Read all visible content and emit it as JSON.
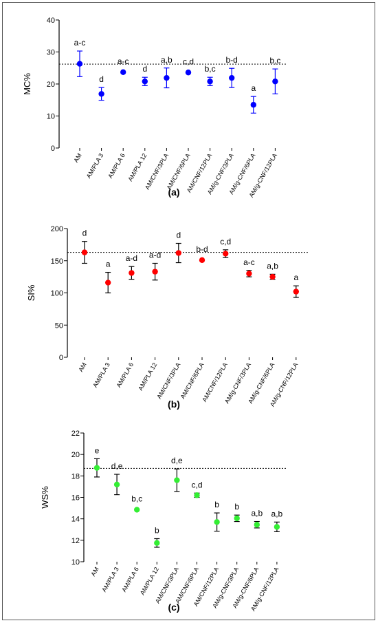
{
  "chart_data": [
    {
      "type": "scatter",
      "panel_label": "(a)",
      "ylabel": "MC%",
      "xlabel": "",
      "ylim": [
        0,
        40
      ],
      "yticks": [
        0,
        10,
        20,
        30,
        40
      ],
      "reference_line": 26.2,
      "color": "#0000ff",
      "categories": [
        "AM",
        "AM/PLA 3",
        "AM/PLA 6",
        "AM/PLA 12",
        "AM/CNF/3PLA",
        "AM/CNF/6PLA",
        "AM/CNF/12PLA",
        "AM/g-CNF/3PLA",
        "AM/g-CNF/6PLA",
        "AM/g-CNF/12PLA"
      ],
      "values": [
        26.3,
        16.9,
        23.7,
        20.8,
        21.9,
        23.6,
        20.8,
        21.9,
        13.5,
        20.8
      ],
      "errors": [
        4.0,
        2.0,
        0,
        1.3,
        3.1,
        0,
        1.3,
        3.0,
        2.6,
        3.9
      ],
      "letters": [
        "a-c",
        "d",
        "a-c",
        "d",
        "a,b",
        "c,d",
        "b,c",
        "b-d",
        "a",
        "b,c"
      ]
    },
    {
      "type": "scatter",
      "panel_label": "(b)",
      "ylabel": "SI%",
      "xlabel": "",
      "ylim": [
        0,
        200
      ],
      "yticks": [
        0,
        50,
        100,
        150,
        200
      ],
      "reference_line": 163,
      "color": "#ff0000",
      "categories": [
        "AM",
        "AM/PLA 3",
        "AM/PLA 6",
        "AM/PLA 12",
        "AM/CNF/3PLA",
        "AM/CNF/6PLA",
        "AM/CNF/12PLA",
        "AM/g-CNF/3PLA",
        "AM/g-CNF/6PLA",
        "AM/g-CNF/12PLA"
      ],
      "values": [
        163,
        116,
        131,
        133,
        162,
        151,
        161,
        130,
        125,
        102
      ],
      "errors": [
        17,
        16,
        10,
        13,
        15,
        0,
        6,
        5,
        4,
        9
      ],
      "letters": [
        "d",
        "a",
        "a-d",
        "a-d",
        "d",
        "b-d",
        "c,d",
        "a-c",
        "a,b",
        "a"
      ]
    },
    {
      "type": "scatter",
      "panel_label": "(c)",
      "ylabel": "WS%",
      "xlabel": "",
      "ylim": [
        10,
        22
      ],
      "yticks": [
        10,
        12,
        14,
        16,
        18,
        20,
        22
      ],
      "reference_line": 18.7,
      "color": "#33ee33",
      "categories": [
        "AM",
        "AM/PLA 3",
        "AM/PLA 6",
        "AM/PLA 12",
        "AM/CNF/3PLA",
        "AM/CNF/6PLA",
        "AM/CNF/12PLA",
        "AM/g-CNF/3PLA",
        "AM/g-CNF/6PLA",
        "AM/g-CNF/12PLA"
      ],
      "values": [
        18.75,
        17.2,
        14.85,
        11.75,
        17.6,
        16.2,
        13.7,
        14.05,
        13.45,
        13.25
      ],
      "errors": [
        0.85,
        0.95,
        0,
        0.4,
        1.05,
        0.2,
        0.85,
        0.3,
        0.3,
        0.45
      ],
      "letters": [
        "e",
        "d,e",
        "b,c",
        "b",
        "d,e",
        "c,d",
        "b",
        "b",
        "a,b",
        "a,b"
      ]
    }
  ]
}
